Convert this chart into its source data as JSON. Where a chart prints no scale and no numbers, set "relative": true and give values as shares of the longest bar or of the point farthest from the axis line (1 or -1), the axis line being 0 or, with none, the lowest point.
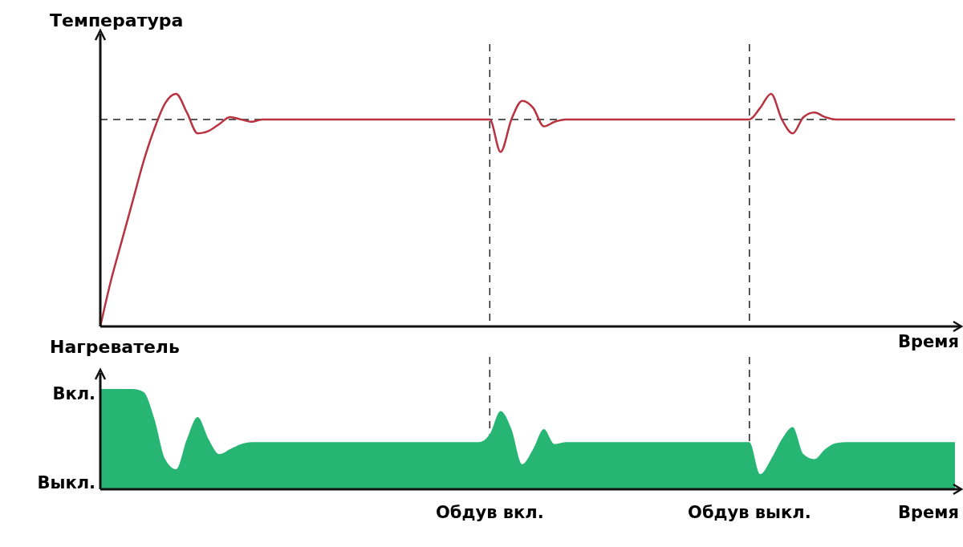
{
  "chart_data": [
    {
      "type": "line",
      "relative": true,
      "ylabel": "Температура",
      "xlabel": "Время",
      "tick_labels": false,
      "line_style": "solid",
      "categories": [
        null,
        null,
        null,
        null,
        null,
        null,
        null,
        null,
        null,
        null,
        null,
        null,
        null,
        null,
        null,
        null,
        null,
        null,
        null,
        null,
        null,
        null,
        null,
        null,
        null,
        null,
        null,
        null,
        null,
        null,
        null,
        null,
        null,
        null,
        null,
        null,
        "Обдув вкл.",
        null,
        null,
        null,
        null,
        null,
        null,
        null,
        null,
        null,
        null,
        null,
        null,
        null,
        null,
        null,
        null,
        null,
        null,
        null,
        null,
        null,
        null,
        null,
        "Обдув выкл.",
        null,
        null,
        null,
        null,
        null,
        null,
        null,
        null,
        null,
        null,
        null,
        null,
        null,
        null,
        null,
        null,
        null,
        null,
        null
      ],
      "series": [
        {
          "color": "#b8323f",
          "values": [
            0,
            0.2,
            0.37,
            0.54,
            0.71,
            0.85,
            0.96,
            1,
            0.92,
            0.83,
            0.84,
            0.87,
            0.9,
            0.89,
            0.88,
            0.89,
            0.89,
            0.89,
            0.89,
            0.89,
            0.89,
            0.89,
            0.89,
            0.89,
            0.89,
            0.89,
            0.89,
            0.89,
            0.89,
            0.89,
            0.89,
            0.89,
            0.89,
            0.89,
            0.89,
            0.89,
            0.89,
            0.75,
            0.89,
            0.97,
            0.94,
            0.86,
            0.88,
            0.89,
            0.89,
            0.89,
            0.89,
            0.89,
            0.89,
            0.89,
            0.89,
            0.89,
            0.89,
            0.89,
            0.89,
            0.89,
            0.89,
            0.89,
            0.89,
            0.89,
            0.89,
            0.94,
            1,
            0.89,
            0.83,
            0.9,
            0.92,
            0.9,
            0.89,
            0.89,
            0.89,
            0.89,
            0.89,
            0.89,
            0.89,
            0.89,
            0.89,
            0.89,
            0.89,
            0.89
          ]
        }
      ],
      "ref_lines": [
        {
          "axis": "y",
          "value": 0.89,
          "line_style": "dashed",
          "color": "#222222"
        },
        {
          "axis": "x",
          "value": "Обдув вкл.",
          "line_style": "dashed",
          "color": "#222222"
        },
        {
          "axis": "x",
          "value": "Обдув выкл.",
          "line_style": "dashed",
          "color": "#222222"
        }
      ]
    },
    {
      "type": "area",
      "relative": true,
      "ylabel": "Нагреватель",
      "xlabel": "Время",
      "annotations": [
        "Вкл.",
        "Выкл."
      ],
      "categories": [
        null,
        null,
        null,
        null,
        null,
        null,
        null,
        null,
        null,
        null,
        null,
        null,
        null,
        null,
        null,
        null,
        null,
        null,
        null,
        null,
        null,
        null,
        null,
        null,
        null,
        null,
        null,
        null,
        null,
        null,
        null,
        null,
        null,
        null,
        null,
        null,
        "Обдув вкл.",
        null,
        null,
        null,
        null,
        null,
        null,
        null,
        null,
        null,
        null,
        null,
        null,
        null,
        null,
        null,
        null,
        null,
        null,
        null,
        null,
        null,
        null,
        null,
        "Обдув выкл.",
        null,
        null,
        null,
        null,
        null,
        null,
        null,
        null,
        null,
        null,
        null,
        null,
        null,
        null,
        null,
        null,
        null,
        null,
        null
      ],
      "series": [
        {
          "color": "#27b574",
          "values": [
            1,
            1,
            1,
            1,
            0.97,
            0.7,
            0.3,
            0.2,
            0.5,
            0.72,
            0.5,
            0.35,
            0.4,
            0.45,
            0.47,
            0.47,
            0.47,
            0.47,
            0.47,
            0.47,
            0.47,
            0.47,
            0.47,
            0.47,
            0.47,
            0.47,
            0.47,
            0.47,
            0.47,
            0.47,
            0.47,
            0.47,
            0.47,
            0.47,
            0.47,
            0.47,
            0.55,
            0.78,
            0.6,
            0.25,
            0.4,
            0.6,
            0.45,
            0.47,
            0.47,
            0.47,
            0.47,
            0.47,
            0.47,
            0.47,
            0.47,
            0.47,
            0.47,
            0.47,
            0.47,
            0.47,
            0.47,
            0.47,
            0.47,
            0.47,
            0.47,
            0.15,
            0.3,
            0.5,
            0.62,
            0.35,
            0.3,
            0.4,
            0.46,
            0.47,
            0.47,
            0.47,
            0.47,
            0.47,
            0.47,
            0.47,
            0.47,
            0.47,
            0.47,
            0.47
          ]
        }
      ],
      "ref_lines": [
        {
          "axis": "x",
          "value": "Обдув вкл.",
          "line_style": "dashed",
          "color": "#222222"
        },
        {
          "axis": "x",
          "value": "Обдув выкл.",
          "line_style": "dashed",
          "color": "#222222"
        }
      ]
    }
  ]
}
